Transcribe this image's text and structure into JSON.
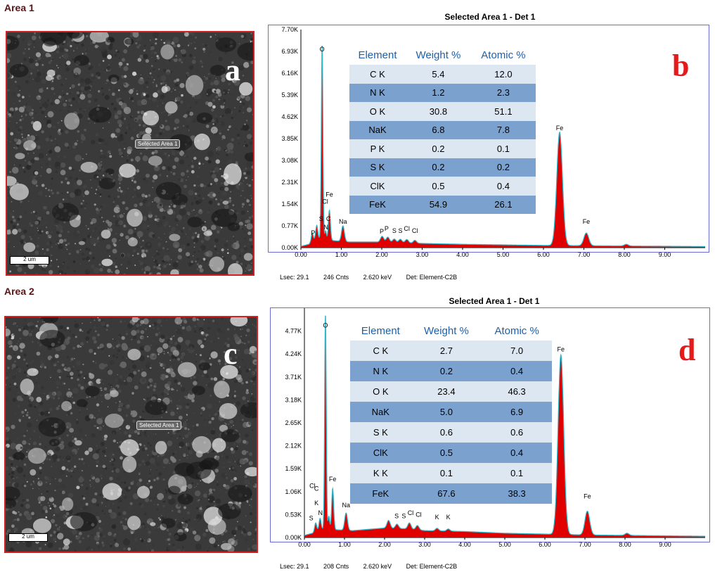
{
  "areas": [
    {
      "title": "Area 1",
      "selected_label": "Selected Area 1",
      "scale_label": "2 um",
      "panel_letter": "a"
    },
    {
      "title": "Area 2",
      "selected_label": "Selected Area 1",
      "scale_label": "2 um",
      "panel_letter": "c"
    }
  ],
  "colors": {
    "panel_letter": "#e51b1b",
    "spectrum_fill": "#e00000",
    "spectrum_line": "#2fb7c9",
    "frame": "#6b6bd6",
    "table_light": "#dde7f2",
    "table_dark": "#7ba1cf",
    "table_header": "#1f5fa8"
  },
  "chart_data": [
    {
      "type": "area",
      "panel_letter": "b",
      "title": "Selected Area 1 - Det 1",
      "xlabel": "",
      "ylabel": "",
      "xlim": [
        0,
        10
      ],
      "ylim": [
        0,
        7.7
      ],
      "y_ticks": [
        "0.00K",
        "0.77K",
        "1.54K",
        "2.31K",
        "3.08K",
        "3.85K",
        "4.62K",
        "5.39K",
        "6.16K",
        "6.93K",
        "7.70K"
      ],
      "x_ticks": [
        "0.00",
        "1.00",
        "2.00",
        "3.00",
        "4.00",
        "5.00",
        "6.00",
        "7.00",
        "8.00",
        "9.00"
      ],
      "background": [
        [
          0,
          0.05
        ],
        [
          0.2,
          0.12
        ],
        [
          0.4,
          0.35
        ],
        [
          0.8,
          0.25
        ],
        [
          1.2,
          0.2
        ],
        [
          2.0,
          0.2
        ],
        [
          3.0,
          0.15
        ],
        [
          4.0,
          0.12
        ],
        [
          5.0,
          0.1
        ],
        [
          6.0,
          0.08
        ],
        [
          7.0,
          0.07
        ],
        [
          8.0,
          0.06
        ],
        [
          9.0,
          0.05
        ],
        [
          10,
          0.04
        ]
      ],
      "peaks": [
        {
          "x": 0.28,
          "h": 0.3,
          "w": 0.025
        },
        {
          "x": 0.39,
          "h": 0.45,
          "w": 0.025
        },
        {
          "x": 0.525,
          "h": 6.9,
          "w": 0.02
        },
        {
          "x": 0.61,
          "h": 0.3,
          "w": 0.02
        },
        {
          "x": 0.705,
          "h": 1.05,
          "w": 0.025
        },
        {
          "x": 1.04,
          "h": 0.55,
          "w": 0.035
        },
        {
          "x": 2.01,
          "h": 0.2,
          "w": 0.04
        },
        {
          "x": 2.15,
          "h": 0.18,
          "w": 0.04
        },
        {
          "x": 2.31,
          "h": 0.12,
          "w": 0.04
        },
        {
          "x": 2.46,
          "h": 0.12,
          "w": 0.04
        },
        {
          "x": 2.62,
          "h": 0.12,
          "w": 0.04
        },
        {
          "x": 2.82,
          "h": 0.1,
          "w": 0.04
        },
        {
          "x": 6.4,
          "h": 4.0,
          "w": 0.07
        },
        {
          "x": 7.06,
          "h": 0.45,
          "w": 0.06
        },
        {
          "x": 8.05,
          "h": 0.06,
          "w": 0.05
        }
      ],
      "peak_labels": [
        {
          "text": "O",
          "x": 0.525,
          "y": 6.93
        },
        {
          "text": "Fe",
          "x": 0.705,
          "y": 1.8
        },
        {
          "text": "Cl",
          "x": 0.6,
          "y": 1.55
        },
        {
          "text": "S",
          "x": 0.5,
          "y": 0.95
        },
        {
          "text": "C",
          "x": 0.68,
          "y": 0.95
        },
        {
          "text": "N",
          "x": 0.62,
          "y": 0.65
        },
        {
          "text": "P",
          "x": 0.3,
          "y": 0.45
        },
        {
          "text": "Na",
          "x": 1.04,
          "y": 0.85
        },
        {
          "text": "P",
          "x": 2.0,
          "y": 0.5
        },
        {
          "text": "P",
          "x": 2.12,
          "y": 0.6
        },
        {
          "text": "S",
          "x": 2.31,
          "y": 0.52
        },
        {
          "text": "S",
          "x": 2.46,
          "y": 0.52
        },
        {
          "text": "Cl",
          "x": 2.62,
          "y": 0.6
        },
        {
          "text": "Cl",
          "x": 2.82,
          "y": 0.52
        },
        {
          "text": "Fe",
          "x": 6.4,
          "y": 4.15
        },
        {
          "text": "Fe",
          "x": 7.06,
          "y": 0.85
        }
      ],
      "table": {
        "headers": [
          "Element",
          "Weight %",
          "Atomic %"
        ],
        "rows": [
          [
            "C K",
            "5.4",
            "12.0"
          ],
          [
            "N K",
            "1.2",
            "2.3"
          ],
          [
            "O K",
            "30.8",
            "51.1"
          ],
          [
            "NaK",
            "6.8",
            "7.8"
          ],
          [
            "P K",
            "0.2",
            "0.1"
          ],
          [
            "S K",
            "0.2",
            "0.2"
          ],
          [
            "ClK",
            "0.5",
            "0.4"
          ],
          [
            "FeK",
            "54.9",
            "26.1"
          ]
        ]
      },
      "footer": [
        "Lsec: 29.1",
        "246 Cnts",
        "2.620 keV",
        "Det: Element-C2B"
      ]
    },
    {
      "type": "area",
      "panel_letter": "d",
      "title": "Selected Area 1 - Det 1",
      "xlabel": "",
      "ylabel": "",
      "xlim": [
        0,
        10
      ],
      "ylim": [
        0,
        5.3
      ],
      "y_ticks": [
        "0.00K",
        "0.53K",
        "1.06K",
        "1.59K",
        "2.12K",
        "2.65K",
        "3.18K",
        "3.71K",
        "4.24K",
        "4.77K"
      ],
      "x_ticks": [
        "0.00",
        "1.00",
        "2.00",
        "3.00",
        "4.00",
        "5.00",
        "6.00",
        "7.00",
        "8.00",
        "9.00"
      ],
      "background": [
        [
          0,
          0.05
        ],
        [
          0.2,
          0.1
        ],
        [
          0.4,
          0.2
        ],
        [
          0.8,
          0.18
        ],
        [
          1.2,
          0.16
        ],
        [
          2.0,
          0.22
        ],
        [
          2.6,
          0.2
        ],
        [
          3.0,
          0.16
        ],
        [
          4.0,
          0.14
        ],
        [
          5.0,
          0.1
        ],
        [
          6.0,
          0.08
        ],
        [
          7.0,
          0.06
        ],
        [
          8.0,
          0.05
        ],
        [
          9.0,
          0.04
        ],
        [
          10,
          0.03
        ]
      ],
      "peaks": [
        {
          "x": 0.28,
          "h": 0.2,
          "w": 0.025
        },
        {
          "x": 0.39,
          "h": 0.25,
          "w": 0.025
        },
        {
          "x": 0.525,
          "h": 5.0,
          "w": 0.02
        },
        {
          "x": 0.61,
          "h": 0.3,
          "w": 0.02
        },
        {
          "x": 0.705,
          "h": 0.95,
          "w": 0.025
        },
        {
          "x": 1.04,
          "h": 0.4,
          "w": 0.035
        },
        {
          "x": 2.1,
          "h": 0.18,
          "w": 0.04
        },
        {
          "x": 2.31,
          "h": 0.1,
          "w": 0.04
        },
        {
          "x": 2.62,
          "h": 0.14,
          "w": 0.04
        },
        {
          "x": 2.82,
          "h": 0.1,
          "w": 0.04
        },
        {
          "x": 3.31,
          "h": 0.06,
          "w": 0.04
        },
        {
          "x": 3.59,
          "h": 0.05,
          "w": 0.04
        },
        {
          "x": 6.4,
          "h": 4.15,
          "w": 0.07
        },
        {
          "x": 7.06,
          "h": 0.55,
          "w": 0.06
        },
        {
          "x": 8.05,
          "h": 0.05,
          "w": 0.05
        }
      ],
      "peak_labels": [
        {
          "text": "O",
          "x": 0.525,
          "y": 4.85
        },
        {
          "text": "Fe",
          "x": 0.705,
          "y": 1.3
        },
        {
          "text": "Cl",
          "x": 0.2,
          "y": 1.15
        },
        {
          "text": "C",
          "x": 0.3,
          "y": 1.08
        },
        {
          "text": "K",
          "x": 0.3,
          "y": 0.75
        },
        {
          "text": "N",
          "x": 0.4,
          "y": 0.52
        },
        {
          "text": "S",
          "x": 0.17,
          "y": 0.4
        },
        {
          "text": "Na",
          "x": 1.04,
          "y": 0.7
        },
        {
          "text": "S",
          "x": 2.3,
          "y": 0.45
        },
        {
          "text": "S",
          "x": 2.48,
          "y": 0.45
        },
        {
          "text": "Cl",
          "x": 2.65,
          "y": 0.52
        },
        {
          "text": "Cl",
          "x": 2.85,
          "y": 0.48
        },
        {
          "text": "K",
          "x": 3.31,
          "y": 0.42
        },
        {
          "text": "K",
          "x": 3.59,
          "y": 0.42
        },
        {
          "text": "Fe",
          "x": 6.4,
          "y": 4.3
        },
        {
          "text": "Fe",
          "x": 7.06,
          "y": 0.9
        }
      ],
      "table": {
        "headers": [
          "Element",
          "Weight %",
          "Atomic %"
        ],
        "rows": [
          [
            "C K",
            "2.7",
            "7.0"
          ],
          [
            "N K",
            "0.2",
            "0.4"
          ],
          [
            "O K",
            "23.4",
            "46.3"
          ],
          [
            "NaK",
            "5.0",
            "6.9"
          ],
          [
            "S K",
            "0.6",
            "0.6"
          ],
          [
            "ClK",
            "0.5",
            "0.4"
          ],
          [
            "K K",
            "0.1",
            "0.1"
          ],
          [
            "FeK",
            "67.6",
            "38.3"
          ]
        ]
      },
      "footer": [
        "Lsec: 29.1",
        "208 Cnts",
        "2.620 keV",
        "Det: Element-C2B"
      ]
    }
  ]
}
